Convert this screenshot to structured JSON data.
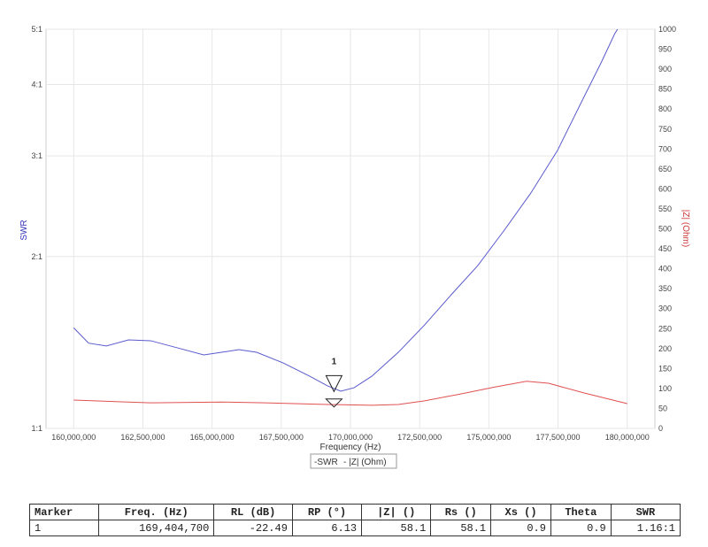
{
  "chart_data": {
    "type": "line",
    "xlabel": "Frequency (Hz)",
    "ylabel_left": "SWR",
    "ylabel_right": "|Z| (Ohm)",
    "xlim": [
      159000000,
      181000000
    ],
    "ylim_left": [
      1,
      5
    ],
    "left_scale": "log",
    "ylim_right": [
      0,
      1000
    ],
    "x_ticks": [
      160000000,
      162500000,
      165000000,
      167500000,
      170000000,
      172500000,
      175000000,
      177500000,
      180000000
    ],
    "x_tick_labels": [
      "160,000,000",
      "162,500,000",
      "165,000,000",
      "167,500,000",
      "170,000,000",
      "172,500,000",
      "175,000,000",
      "177,500,000",
      "180,000,000"
    ],
    "left_ticks": [
      1,
      2,
      3,
      4,
      5
    ],
    "left_tick_labels": [
      "1:1",
      "2:1",
      "3:1",
      "4:1",
      "5:1"
    ],
    "right_ticks": [
      0,
      50,
      100,
      150,
      200,
      250,
      300,
      350,
      400,
      450,
      500,
      550,
      600,
      650,
      700,
      750,
      800,
      850,
      900,
      950,
      1000
    ],
    "right_tick_labels": [
      "0",
      "50",
      "100",
      "150",
      "200",
      "250",
      "300",
      "350",
      "400",
      "450",
      "500",
      "550",
      "600",
      "650",
      "700",
      "750",
      "800",
      "850",
      "900",
      "950",
      "1000"
    ],
    "grid": true,
    "legend": [
      "SWR",
      "|Z| (Ohm)"
    ],
    "legend_placement": "bottom",
    "series": [
      {
        "name": "SWR",
        "color": "#5a5acd",
        "axis": "left",
        "x": [
          160.0,
          160.54,
          161.18,
          161.98,
          162.78,
          163.74,
          164.7,
          165.34,
          165.97,
          166.61,
          167.57,
          168.53,
          169.17,
          169.65,
          170.13,
          170.77,
          171.73,
          172.68,
          173.64,
          174.6,
          175.56,
          176.52,
          177.48,
          178.43,
          179.07,
          179.55,
          179.87
        ],
        "y": [
          1.5,
          1.41,
          1.394,
          1.429,
          1.424,
          1.384,
          1.345,
          1.359,
          1.374,
          1.359,
          1.302,
          1.234,
          1.187,
          1.162,
          1.178,
          1.234,
          1.359,
          1.518,
          1.714,
          1.928,
          2.224,
          2.584,
          3.066,
          3.799,
          4.382,
          4.911,
          5.2
        ]
      },
      {
        "name": "|Z| (Ohm)",
        "color": "#e05050",
        "axis": "right",
        "x": [
          160.0,
          162.78,
          165.34,
          166.93,
          169.17,
          170.77,
          171.73,
          172.68,
          173.96,
          175.24,
          176.36,
          177.16,
          178.43,
          180.0
        ],
        "y": [
          71,
          64,
          66,
          64,
          60,
          58,
          60,
          69,
          86,
          104,
          118,
          113,
          89,
          62
        ]
      }
    ],
    "marker": {
      "label": "1",
      "freq_mhz": 169.4047,
      "swr": 1.16,
      "z": 58.1
    }
  },
  "table": {
    "headers": [
      "Marker",
      "Freq. (Hz)",
      "RL (dB)",
      "RP (°)",
      "|Z| ()",
      "Rs ()",
      "Xs ()",
      "Theta",
      "SWR"
    ],
    "rows": [
      [
        "1",
        "169,404,700",
        "-22.49",
        "6.13",
        "58.1",
        "58.1",
        "0.9",
        "0.9",
        "1.16:1"
      ]
    ]
  }
}
